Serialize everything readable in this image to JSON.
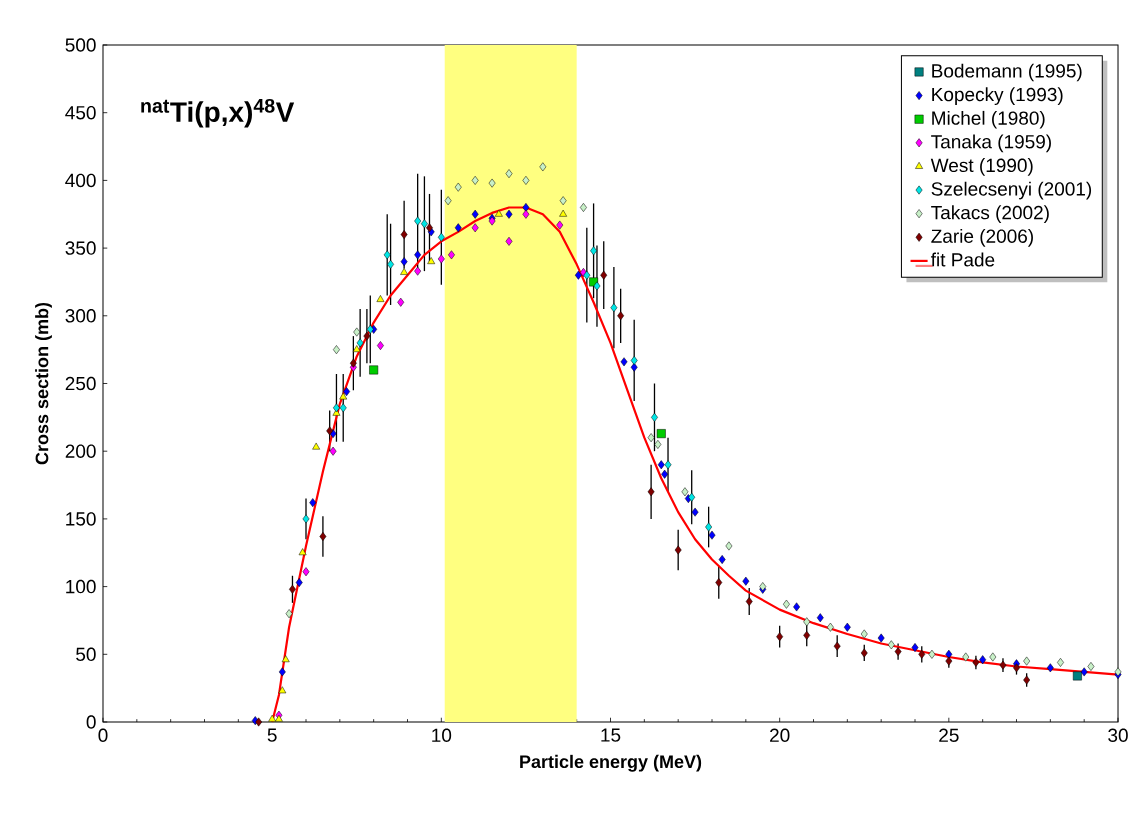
{
  "chart_data": {
    "type": "scatter",
    "xlabel": "Particle energy (MeV)",
    "ylabel": "Cross section (mb)",
    "annotations": [
      "$^{nat}$Ti(p,x)$^{48}$V"
    ],
    "xlim": [
      0,
      30
    ],
    "ylim": [
      0,
      500
    ],
    "xticks": [
      0,
      5,
      10,
      15,
      20,
      25,
      30
    ],
    "yticks": [
      0,
      50,
      100,
      150,
      200,
      250,
      300,
      350,
      400,
      450,
      500
    ],
    "legend": "top right",
    "grid": false,
    "bands": [
      {
        "axis": "x",
        "from": 10.1,
        "to": 14,
        "color": "#ffff80"
      }
    ],
    "series": [
      {
        "name": "Bodemann (1995)",
        "color": "#008080",
        "marker": "square",
        "x": [
          28.8
        ],
        "values": [
          34
        ]
      },
      {
        "name": "Kopecky (1993)",
        "color": "#0000ff",
        "marker": "diamond",
        "x": [
          4.5,
          5.3,
          5.8,
          6.2,
          6.8,
          7.2,
          8.0,
          8.9,
          9.3,
          9.7,
          10.5,
          11.0,
          11.5,
          12.0,
          12.5,
          14.05,
          15.4,
          15.7,
          16.5,
          16.6,
          17.3,
          17.5,
          18.0,
          18.3,
          19.0,
          19.5,
          20.5,
          21.2,
          22.0,
          23.0,
          24.0,
          25.0,
          26.0,
          27.0,
          28.0,
          29.0,
          30.0
        ],
        "values": [
          1,
          37,
          103,
          162,
          213,
          244,
          290,
          340,
          345,
          362,
          365,
          375,
          372,
          375,
          380,
          330,
          266,
          262,
          190,
          183,
          165,
          155,
          138,
          120,
          104,
          98,
          85,
          77,
          70,
          62,
          55,
          50,
          46,
          43,
          40,
          37,
          35
        ]
      },
      {
        "name": "Michel (1980)",
        "color": "#00cc00",
        "marker": "square",
        "x": [
          8.0,
          14.5,
          16.5
        ],
        "values": [
          260,
          325,
          213
        ]
      },
      {
        "name": "Tanaka (1959)",
        "color": "#ff00ff",
        "marker": "diamond",
        "x": [
          5.2,
          6.0,
          6.8,
          7.4,
          8.2,
          8.8,
          9.3,
          10.0,
          10.3,
          11.0,
          11.5,
          12.0,
          12.5,
          13.5,
          14.2
        ],
        "values": [
          5,
          111,
          200,
          262,
          278,
          310,
          333,
          342,
          345,
          365,
          370,
          355,
          375,
          367,
          332
        ]
      },
      {
        "name": "West (1990)",
        "color": "#ffff00",
        "marker": "triangle",
        "x": [
          5.0,
          5.2,
          5.3,
          5.4,
          5.9,
          6.3,
          6.9,
          7.1,
          7.5,
          8.2,
          8.9,
          9.7,
          11.7,
          13.6
        ],
        "values": [
          2,
          2,
          23,
          46,
          125,
          203,
          228,
          240,
          275,
          312,
          332,
          340,
          375,
          375
        ]
      },
      {
        "name": "Szelecsenyi (2001)",
        "color": "#00e5e5",
        "marker": "diamond",
        "x": [
          6.0,
          6.9,
          7.1,
          7.6,
          7.9,
          8.4,
          8.5,
          9.3,
          9.5,
          10.0,
          14.3,
          14.5,
          14.6,
          15.1,
          15.7,
          16.3,
          16.7,
          17.4,
          17.9
        ],
        "values": [
          150,
          232,
          232,
          280,
          290,
          345,
          338,
          370,
          368,
          358,
          330,
          348,
          322,
          306,
          267,
          225,
          190,
          166,
          144
        ],
        "errors": [
          15,
          25,
          25,
          25,
          25,
          30,
          30,
          35,
          35,
          35,
          35,
          35,
          30,
          30,
          30,
          25,
          20,
          20,
          15
        ]
      },
      {
        "name": "Takacs (2002)",
        "color": "#c8f0c8",
        "marker": "diamond",
        "x": [
          5.5,
          6.9,
          7.5,
          10.2,
          10.5,
          11.0,
          11.5,
          12.0,
          12.5,
          13.0,
          13.6,
          14.2,
          16.2,
          16.4,
          17.2,
          18.5,
          19.5,
          20.2,
          20.8,
          21.5,
          22.5,
          23.3,
          24.5,
          25.5,
          26.3,
          27.3,
          28.3,
          29.2,
          30.0
        ],
        "values": [
          80,
          275,
          288,
          385,
          395,
          400,
          398,
          405,
          400,
          410,
          385,
          380,
          210,
          205,
          170,
          130,
          100,
          87,
          74,
          70,
          65,
          57,
          50,
          48,
          48,
          45,
          44,
          41,
          37
        ]
      },
      {
        "name": "Zarie (2006)",
        "color": "#800000",
        "marker": "diamond",
        "x": [
          4.6,
          5.6,
          6.5,
          6.7,
          7.4,
          7.8,
          8.9,
          9.65,
          14.8,
          15.3,
          16.2,
          17.0,
          18.2,
          19.1,
          20.0,
          20.8,
          21.7,
          22.5,
          23.5,
          24.2,
          25.0,
          25.8,
          26.6,
          27.0,
          27.3
        ],
        "values": [
          0,
          98,
          137,
          215,
          265,
          285,
          360,
          365,
          330,
          300,
          170,
          127,
          103,
          89,
          63,
          64,
          56,
          51,
          52,
          50,
          45,
          44,
          42,
          40,
          31
        ],
        "errors": [
          null,
          10,
          15,
          15,
          20,
          20,
          25,
          25,
          25,
          20,
          20,
          15,
          12,
          10,
          8,
          8,
          8,
          6,
          6,
          6,
          5,
          5,
          5,
          5,
          5
        ]
      },
      {
        "name": "fit Pade",
        "type": "line",
        "color": "#ff0000",
        "marker": "none",
        "x": [
          5.0,
          5.2,
          5.5,
          6.0,
          6.5,
          7.0,
          7.5,
          8.0,
          8.5,
          9.0,
          9.5,
          10,
          10.5,
          11,
          11.5,
          12,
          12.5,
          13,
          13.5,
          14,
          14.5,
          15,
          15.5,
          16,
          16.5,
          17,
          17.5,
          18,
          18.5,
          19,
          20,
          21,
          22,
          23,
          24,
          25,
          26,
          27,
          28,
          29,
          30
        ],
        "values": [
          0,
          20,
          70,
          130,
          185,
          235,
          270,
          295,
          315,
          330,
          345,
          355,
          362,
          370,
          376,
          380,
          380,
          375,
          362,
          338,
          310,
          280,
          245,
          210,
          180,
          155,
          135,
          120,
          108,
          97,
          83,
          73,
          65,
          58,
          53,
          48,
          44,
          41,
          39,
          37,
          35
        ]
      }
    ]
  }
}
